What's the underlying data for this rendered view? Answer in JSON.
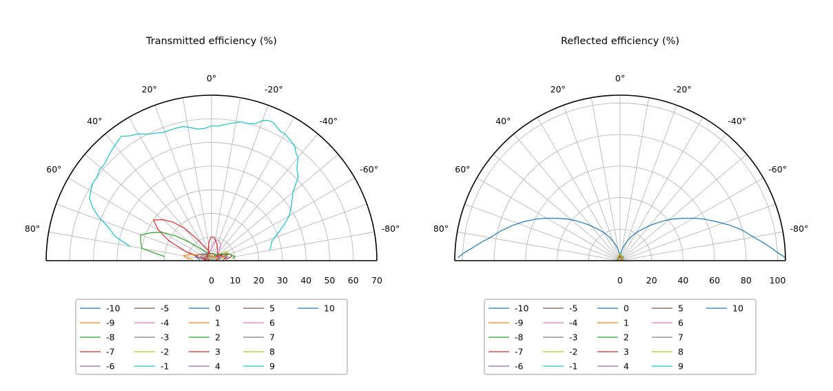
{
  "figure": {
    "series_colors": [
      "#1f77b4",
      "#ff7f0e",
      "#2ca02c",
      "#d62728",
      "#9467bd",
      "#8c564b",
      "#e377c2",
      "#7f7f7f",
      "#bcbd22",
      "#17becf"
    ],
    "legend_labels": [
      "-10",
      "-9",
      "-8",
      "-7",
      "-6",
      "-5",
      "-4",
      "-3",
      "-2",
      "-1",
      "0",
      "1",
      "2",
      "3",
      "4",
      "5",
      "6",
      "7",
      "8",
      "9",
      "10"
    ]
  },
  "chart_data": [
    {
      "type": "polar-line",
      "title": "Transmitted efficiency (%)",
      "theta_range_deg": [
        -90,
        90
      ],
      "theta_ticks": [
        {
          "value": 80,
          "label": "80°"
        },
        {
          "value": 60,
          "label": "60°"
        },
        {
          "value": 40,
          "label": "40°"
        },
        {
          "value": 20,
          "label": "20°"
        },
        {
          "value": 0,
          "label": "0°"
        },
        {
          "value": -20,
          "label": "-20°"
        },
        {
          "value": -40,
          "label": "-40°"
        },
        {
          "value": -60,
          "label": "-60°"
        },
        {
          "value": -80,
          "label": "-80°"
        }
      ],
      "r_range": [
        0,
        70
      ],
      "r_ticks": [
        "0",
        "10",
        "20",
        "30",
        "40",
        "50",
        "60",
        "70"
      ],
      "r_tick_values": [
        0,
        10,
        20,
        30,
        40,
        50,
        60,
        70
      ],
      "series": [
        {
          "name": "-1",
          "color_index": 9,
          "theta": [
            -80,
            -72,
            -68,
            -64,
            -60,
            -57,
            -54,
            -50,
            -46,
            -43,
            -40,
            -38,
            -36,
            -33,
            -30,
            -28,
            -26,
            -24,
            -22,
            -20,
            -18,
            -15,
            -12,
            -9,
            -6,
            -3,
            0,
            3,
            6,
            9,
            12,
            15,
            18,
            21,
            24,
            27,
            30,
            33,
            36,
            39,
            42,
            45,
            48,
            51,
            54,
            57,
            60,
            63,
            66,
            69,
            72,
            76,
            80
          ],
          "r": [
            25,
            27,
            30,
            34,
            38,
            40,
            42,
            45,
            51,
            53,
            57,
            58,
            60,
            61,
            62,
            62,
            63,
            64,
            64,
            63,
            61,
            60,
            60,
            59,
            58,
            57,
            57,
            56,
            56,
            57,
            58,
            58,
            58,
            58,
            59,
            60,
            62,
            63,
            65,
            64,
            63,
            62,
            61,
            61,
            60,
            60,
            59,
            58,
            55,
            51,
            46,
            42,
            35
          ]
        },
        {
          "name": "0",
          "color_index": 0,
          "theta": [
            -85,
            -75,
            -65,
            -55,
            -45,
            -35,
            -25,
            -15,
            -5,
            0,
            5,
            15,
            25,
            35,
            45,
            55,
            65,
            75,
            85
          ],
          "r": [
            5,
            7,
            6,
            5,
            4,
            3,
            2,
            2,
            1.5,
            1.5,
            1.5,
            2,
            2,
            3,
            4,
            5,
            6,
            7,
            5
          ]
        },
        {
          "name": "-2",
          "color_index": 8,
          "theta": [
            -80,
            -72,
            -65,
            -58,
            -52,
            -46,
            -40,
            -34,
            -28,
            -20,
            -10,
            0,
            10,
            20,
            30,
            40,
            50,
            60,
            70,
            80
          ],
          "r": [
            3,
            6,
            8,
            7,
            5,
            4,
            3,
            2,
            2,
            2,
            1.5,
            1.5,
            1.5,
            1.5,
            2,
            2,
            2,
            1.5,
            1,
            0.5
          ]
        },
        {
          "name": "-3",
          "color_index": 7,
          "theta": [
            -85,
            -70,
            -55,
            -40,
            -25,
            -10,
            0,
            10,
            25,
            40,
            55,
            70,
            85
          ],
          "r": [
            2,
            4,
            3,
            2,
            2,
            2,
            2,
            2,
            2,
            2,
            3,
            4,
            2
          ]
        },
        {
          "name": "-4",
          "color_index": 6,
          "theta": [
            -80,
            -70,
            -60,
            -50,
            -40,
            -30,
            -20,
            -12,
            -5,
            0,
            10,
            20,
            40,
            60,
            80
          ],
          "r": [
            2,
            3,
            3,
            3,
            5,
            8,
            9,
            9,
            7,
            5,
            4,
            3,
            3,
            3,
            2
          ]
        },
        {
          "name": "-5",
          "color_index": 5,
          "theta": [
            -85,
            -70,
            -55,
            -40,
            -25,
            -10,
            0,
            10,
            25,
            40,
            55,
            70,
            85
          ],
          "r": [
            2,
            3,
            3,
            3,
            3,
            3,
            3,
            3,
            3,
            3,
            3,
            3,
            2
          ]
        },
        {
          "name": "-6",
          "color_index": 4,
          "theta": [
            -85,
            -70,
            -55,
            -40,
            -25,
            -10,
            0,
            10,
            25,
            40,
            55,
            70,
            85
          ],
          "r": [
            3,
            4,
            3,
            3,
            3,
            3,
            3,
            3,
            3,
            4,
            4,
            5,
            3
          ]
        },
        {
          "name": "-7",
          "color_index": 3,
          "theta": [
            -85,
            -80,
            -75,
            -70,
            -65,
            -60,
            -50,
            -40,
            -30,
            -20,
            -10,
            0,
            10,
            20,
            30,
            35,
            40,
            45,
            50,
            55,
            60,
            65,
            70,
            75,
            80,
            85
          ],
          "r": [
            6,
            8,
            9,
            8,
            6,
            4,
            3,
            3,
            3,
            3,
            3,
            3,
            3,
            5,
            8,
            12,
            18,
            23,
            27,
            30,
            26,
            20,
            12,
            6,
            3,
            2
          ]
        },
        {
          "name": "-8",
          "color_index": 2,
          "theta": [
            -85,
            -80,
            -75,
            -70,
            -65,
            -60,
            -50,
            -40,
            -30,
            -20,
            -10,
            0,
            10,
            20,
            30,
            40,
            50,
            55,
            60,
            65,
            70,
            75,
            80,
            85
          ],
          "r": [
            9,
            10,
            9,
            8,
            7,
            5,
            4,
            3,
            3,
            3,
            3,
            3,
            3,
            3,
            4,
            6,
            12,
            18,
            24,
            28,
            32,
            31,
            30,
            20
          ]
        },
        {
          "name": "-9",
          "color_index": 1,
          "theta": [
            -85,
            -75,
            -65,
            -55,
            -45,
            -35,
            -25,
            -15,
            0,
            15,
            30,
            45,
            55,
            65,
            75,
            80,
            83,
            86
          ],
          "r": [
            3,
            3,
            3,
            2,
            2,
            2,
            2,
            2,
            2,
            2,
            3,
            3,
            4,
            6,
            10,
            12,
            11,
            8
          ]
        },
        {
          "name": "3",
          "color_index": 3,
          "theta": [
            -85,
            -80,
            -75,
            -70,
            -60,
            -50,
            -40,
            -30,
            -20,
            -10,
            -5,
            0,
            5,
            10,
            20,
            30,
            40,
            60,
            80
          ],
          "r": [
            5,
            6,
            6,
            5,
            4,
            4,
            4,
            5,
            7,
            9,
            10,
            10,
            9,
            7,
            4,
            3,
            3,
            2,
            1
          ]
        }
      ]
    },
    {
      "type": "polar-line",
      "title": "Reflected efficiency (%)",
      "theta_range_deg": [
        -90,
        90
      ],
      "theta_ticks": [
        {
          "value": 80,
          "label": "80°"
        },
        {
          "value": 60,
          "label": "60°"
        },
        {
          "value": 40,
          "label": "40°"
        },
        {
          "value": 20,
          "label": "20°"
        },
        {
          "value": 0,
          "label": "0°"
        },
        {
          "value": -20,
          "label": "-20°"
        },
        {
          "value": -40,
          "label": "-40°"
        },
        {
          "value": -60,
          "label": "-60°"
        },
        {
          "value": -80,
          "label": "-80°"
        }
      ],
      "r_range": [
        0,
        105
      ],
      "r_ticks": [
        "0",
        "20",
        "40",
        "60",
        "80",
        "100"
      ],
      "r_tick_values": [
        0,
        20,
        40,
        60,
        80,
        100
      ],
      "series": [
        {
          "name": "-10",
          "color_index": 0,
          "theta": [
            -89,
            -87,
            -85,
            -82,
            -80,
            -76,
            -72,
            -68,
            -64,
            -60,
            -56,
            -52,
            -48,
            -44,
            -40,
            -36,
            -32,
            -28,
            -24,
            -20,
            -15,
            -10,
            -5,
            0,
            5,
            10,
            15,
            20,
            24,
            28,
            32,
            36,
            40,
            44,
            48,
            52,
            56,
            60,
            64,
            68,
            72,
            76,
            80,
            82,
            85,
            87,
            89
          ],
          "r": [
            105,
            100,
            96,
            90,
            86,
            80,
            73,
            66,
            60,
            54,
            48,
            43,
            38,
            33,
            29,
            25,
            22,
            19,
            16,
            13,
            10,
            7,
            4,
            2,
            4,
            7,
            10,
            13,
            16,
            19,
            22,
            25,
            29,
            33,
            38,
            43,
            48,
            54,
            60,
            66,
            72,
            78,
            84,
            88,
            94,
            99,
            103
          ]
        },
        {
          "name": "0",
          "color_index": 1,
          "theta": [
            -80,
            -60,
            -40,
            -20,
            0,
            20,
            40,
            60,
            80
          ],
          "r": [
            1,
            2,
            2,
            3,
            3,
            3,
            2,
            2,
            1
          ]
        },
        {
          "name": "-8",
          "color_index": 2,
          "theta": [
            -80,
            -60,
            -40,
            -20,
            0,
            20,
            40,
            60,
            80
          ],
          "r": [
            1,
            2,
            3,
            3,
            4,
            3,
            2,
            2,
            1
          ]
        },
        {
          "name": "3",
          "color_index": 3,
          "theta": [
            -80,
            -60,
            -40,
            -20,
            0,
            20,
            40,
            60,
            80
          ],
          "r": [
            1,
            1,
            2,
            2,
            3,
            2,
            2,
            1,
            1
          ]
        },
        {
          "name": "-2",
          "color_index": 8,
          "theta": [
            -80,
            -60,
            -40,
            -20,
            0,
            20,
            40,
            60,
            80
          ],
          "r": [
            1,
            2,
            2,
            2,
            5,
            3,
            2,
            1,
            1
          ]
        }
      ]
    }
  ]
}
